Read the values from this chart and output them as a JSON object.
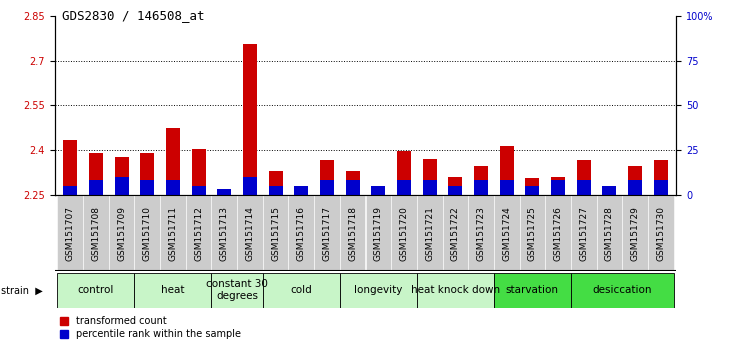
{
  "title": "GDS2830 / 146508_at",
  "samples": [
    "GSM151707",
    "GSM151708",
    "GSM151709",
    "GSM151710",
    "GSM151711",
    "GSM151712",
    "GSM151713",
    "GSM151714",
    "GSM151715",
    "GSM151716",
    "GSM151717",
    "GSM151718",
    "GSM151719",
    "GSM151720",
    "GSM151721",
    "GSM151722",
    "GSM151723",
    "GSM151724",
    "GSM151725",
    "GSM151726",
    "GSM151727",
    "GSM151728",
    "GSM151729",
    "GSM151730"
  ],
  "red_values": [
    2.435,
    2.39,
    2.375,
    2.39,
    2.475,
    2.405,
    2.265,
    2.755,
    2.33,
    2.265,
    2.365,
    2.33,
    2.265,
    2.395,
    2.37,
    2.31,
    2.345,
    2.415,
    2.305,
    2.31,
    2.365,
    2.28,
    2.345,
    2.365
  ],
  "blue_values": [
    5,
    8,
    10,
    8,
    8,
    5,
    3,
    10,
    5,
    5,
    8,
    8,
    5,
    8,
    8,
    5,
    8,
    8,
    5,
    8,
    8,
    5,
    8,
    8
  ],
  "groups": [
    {
      "label": "control",
      "start": 0,
      "end": 2,
      "color": "#c8f5c8"
    },
    {
      "label": "heat",
      "start": 3,
      "end": 5,
      "color": "#c8f5c8"
    },
    {
      "label": "constant 30\ndegrees",
      "start": 6,
      "end": 7,
      "color": "#c8f5c8"
    },
    {
      "label": "cold",
      "start": 8,
      "end": 10,
      "color": "#c8f5c8"
    },
    {
      "label": "longevity",
      "start": 11,
      "end": 13,
      "color": "#c8f5c8"
    },
    {
      "label": "heat knock down",
      "start": 14,
      "end": 16,
      "color": "#c8f5c8"
    },
    {
      "label": "starvation",
      "start": 17,
      "end": 19,
      "color": "#44dd44"
    },
    {
      "label": "desiccation",
      "start": 20,
      "end": 23,
      "color": "#44dd44"
    }
  ],
  "ylim_left": [
    2.25,
    2.85
  ],
  "ylim_right": [
    0,
    100
  ],
  "yticks_left": [
    2.25,
    2.4,
    2.55,
    2.7,
    2.85
  ],
  "yticks_right": [
    0,
    25,
    50,
    75,
    100
  ],
  "red_color": "#cc0000",
  "blue_color": "#0000cc",
  "sample_box_color": "#cccccc",
  "tick_fontsize": 7,
  "sample_fontsize": 6.5,
  "group_label_fontsize": 7.5
}
